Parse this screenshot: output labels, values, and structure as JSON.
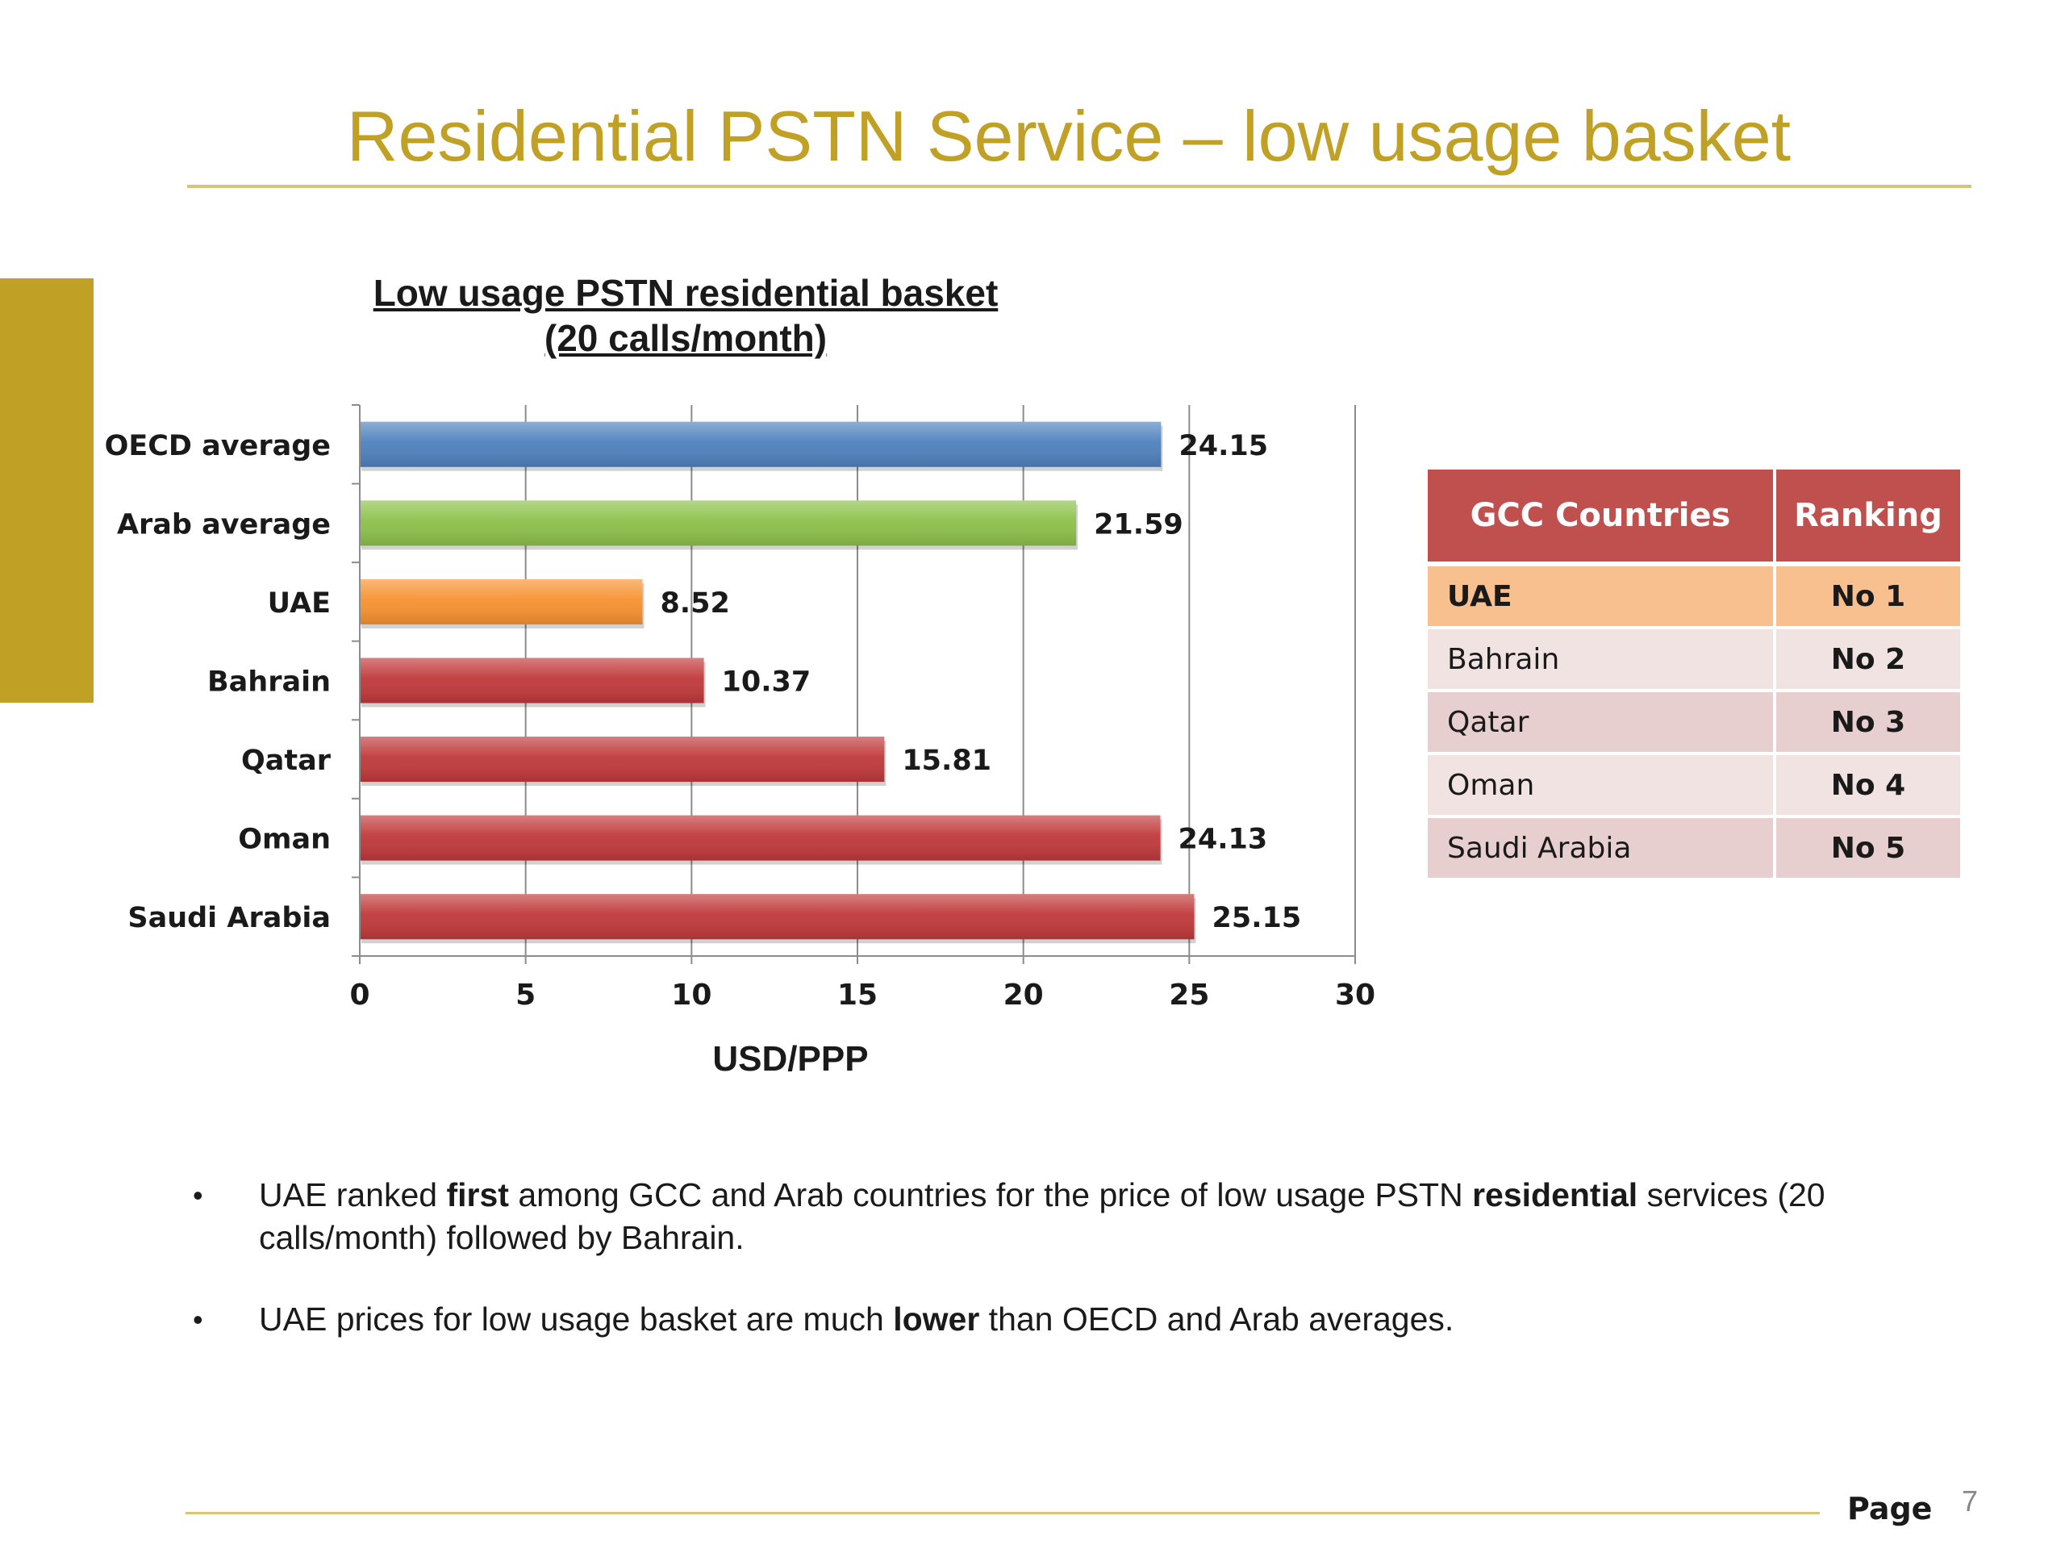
{
  "slide": {
    "title": "Residential PSTN Service – low usage basket",
    "page_label": "Page",
    "page_number": "7",
    "accent_color": "#c0a126"
  },
  "chart_data": {
    "type": "bar",
    "orientation": "horizontal",
    "title_line1": "Low usage PSTN residential basket",
    "title_line2": "(20 calls/month)",
    "xlabel": "USD/PPP",
    "ylabel": "",
    "xlim": [
      0,
      30
    ],
    "x_ticks": [
      0,
      5,
      10,
      15,
      20,
      25,
      30
    ],
    "grid": "vertical",
    "legend": "none",
    "categories": [
      "OECD average",
      "Arab average",
      "UAE",
      "Bahrain",
      "Qatar",
      "Oman",
      "Saudi Arabia"
    ],
    "values": [
      24.15,
      21.59,
      8.52,
      10.37,
      15.81,
      24.13,
      25.15
    ],
    "value_labels": [
      "24.15",
      "21.59",
      "8.52",
      "10.37",
      "15.81",
      "24.13",
      "25.15"
    ],
    "colors": [
      "#4f81bd",
      "#8dc04a",
      "#f79230",
      "#c0393b",
      "#c0393b",
      "#c0393b",
      "#c0393b"
    ]
  },
  "table": {
    "headers": [
      "GCC Countries",
      "Ranking"
    ],
    "header_color": "#c0504d",
    "rows": [
      {
        "country": "UAE",
        "rank": "No 1"
      },
      {
        "country": "Bahrain",
        "rank": "No 2"
      },
      {
        "country": "Qatar",
        "rank": "No 3"
      },
      {
        "country": "Oman",
        "rank": "No 4"
      },
      {
        "country": "Saudi Arabia",
        "rank": "No 5"
      }
    ]
  },
  "bullets": [
    {
      "p1": "UAE ranked ",
      "b1": "first",
      "p2": " among GCC and Arab countries for the price of low usage PSTN ",
      "b2": "residential",
      "p3": " services (20 calls/month) followed by Bahrain."
    },
    {
      "p1": "UAE prices for low usage basket are much ",
      "b1": "lower",
      "p2": " than OECD and Arab averages.",
      "b2": "",
      "p3": ""
    }
  ]
}
